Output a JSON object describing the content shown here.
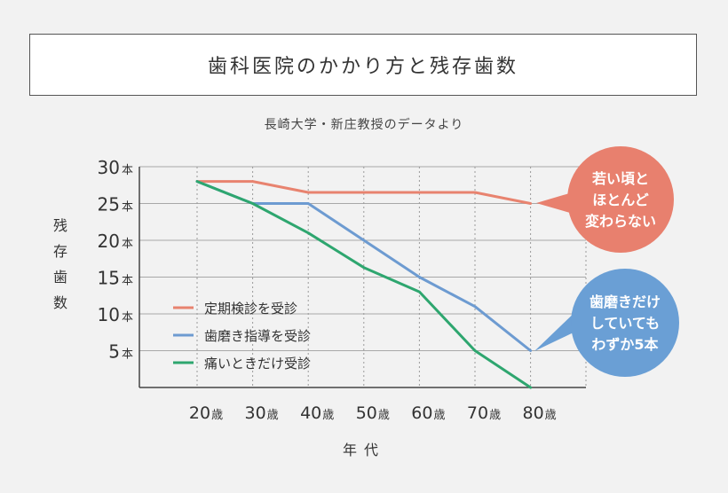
{
  "title": "歯科医院のかかり方と残存歯数",
  "subtitle": "長崎大学・新庄教授のデータより",
  "chart_data": {
    "type": "line",
    "x": [
      20,
      30,
      40,
      50,
      60,
      70,
      80
    ],
    "x_tick_labels": [
      "20",
      "30",
      "40",
      "50",
      "60",
      "70",
      "80"
    ],
    "x_tick_unit": "歳",
    "xlabel": "年代",
    "ylabel": "残存歯数",
    "y_ticks": [
      5,
      10,
      15,
      20,
      25,
      30
    ],
    "y_tick_unit": "本",
    "ylim": [
      0,
      30
    ],
    "grid": true,
    "legend_position": "bottom-left",
    "series": [
      {
        "name": "定期検診を受診",
        "color": "#e8836f",
        "values": [
          28,
          28,
          26.5,
          26.5,
          26.5,
          26.5,
          25
        ]
      },
      {
        "name": "歯磨き指導を受診",
        "color": "#6d9bd1",
        "values": [
          28,
          25,
          25,
          20,
          15,
          11,
          5
        ]
      },
      {
        "name": "痛いときだけ受診",
        "color": "#2ea66f",
        "values": [
          28,
          25,
          21,
          16.3,
          13,
          5,
          0
        ]
      }
    ],
    "annotations": [
      {
        "lines": [
          "若い頃と",
          "ほとんど",
          "変わらない"
        ],
        "color": "#e8806e"
      },
      {
        "lines": [
          "歯磨きだけ",
          "していても",
          "わずか5本"
        ],
        "color": "#6a9fd5"
      }
    ]
  }
}
